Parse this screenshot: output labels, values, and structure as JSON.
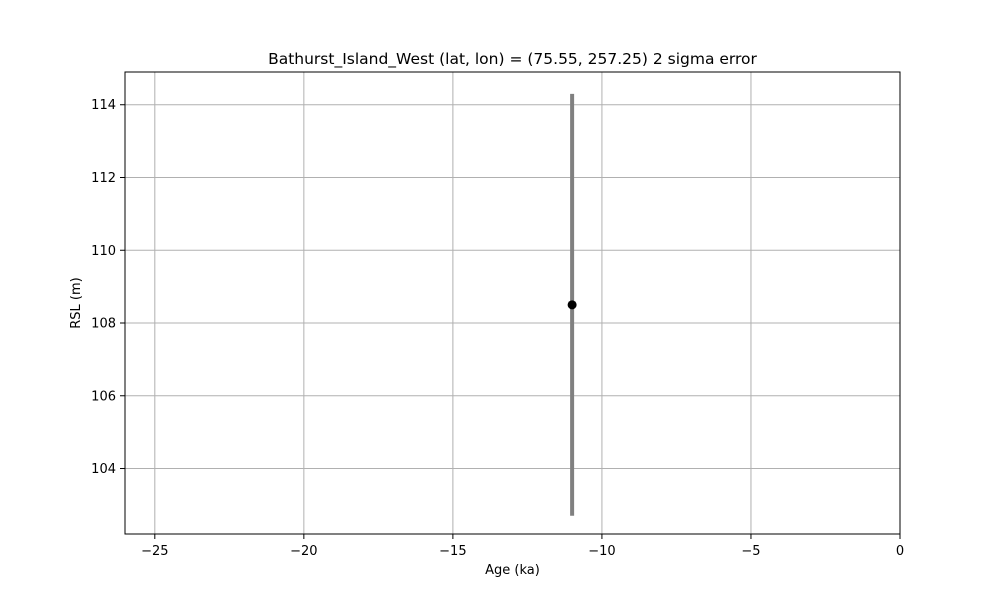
{
  "chart_data": {
    "type": "scatter",
    "title": "Bathurst_Island_West (lat, lon) = (75.55, 257.25)  2 sigma error",
    "xlabel": "Age (ka)",
    "ylabel": "RSL (m)",
    "xlim": [
      -26,
      0
    ],
    "ylim": [
      102.2,
      114.9
    ],
    "xticks": [
      -25,
      -20,
      -15,
      -10,
      -5,
      0
    ],
    "xtick_labels": [
      "−25",
      "−20",
      "−15",
      "−10",
      "−5",
      "0"
    ],
    "yticks": [
      104,
      106,
      108,
      110,
      112,
      114
    ],
    "ytick_labels": [
      "104",
      "106",
      "108",
      "110",
      "112",
      "114"
    ],
    "grid": true,
    "points": [
      {
        "x": -11.0,
        "y": 108.5,
        "err_low": 102.7,
        "err_high": 114.3
      }
    ],
    "colors": {
      "point": "#000000",
      "errorbar": "#808080",
      "grid": "#b0b0b0",
      "axes": "#000000"
    }
  }
}
